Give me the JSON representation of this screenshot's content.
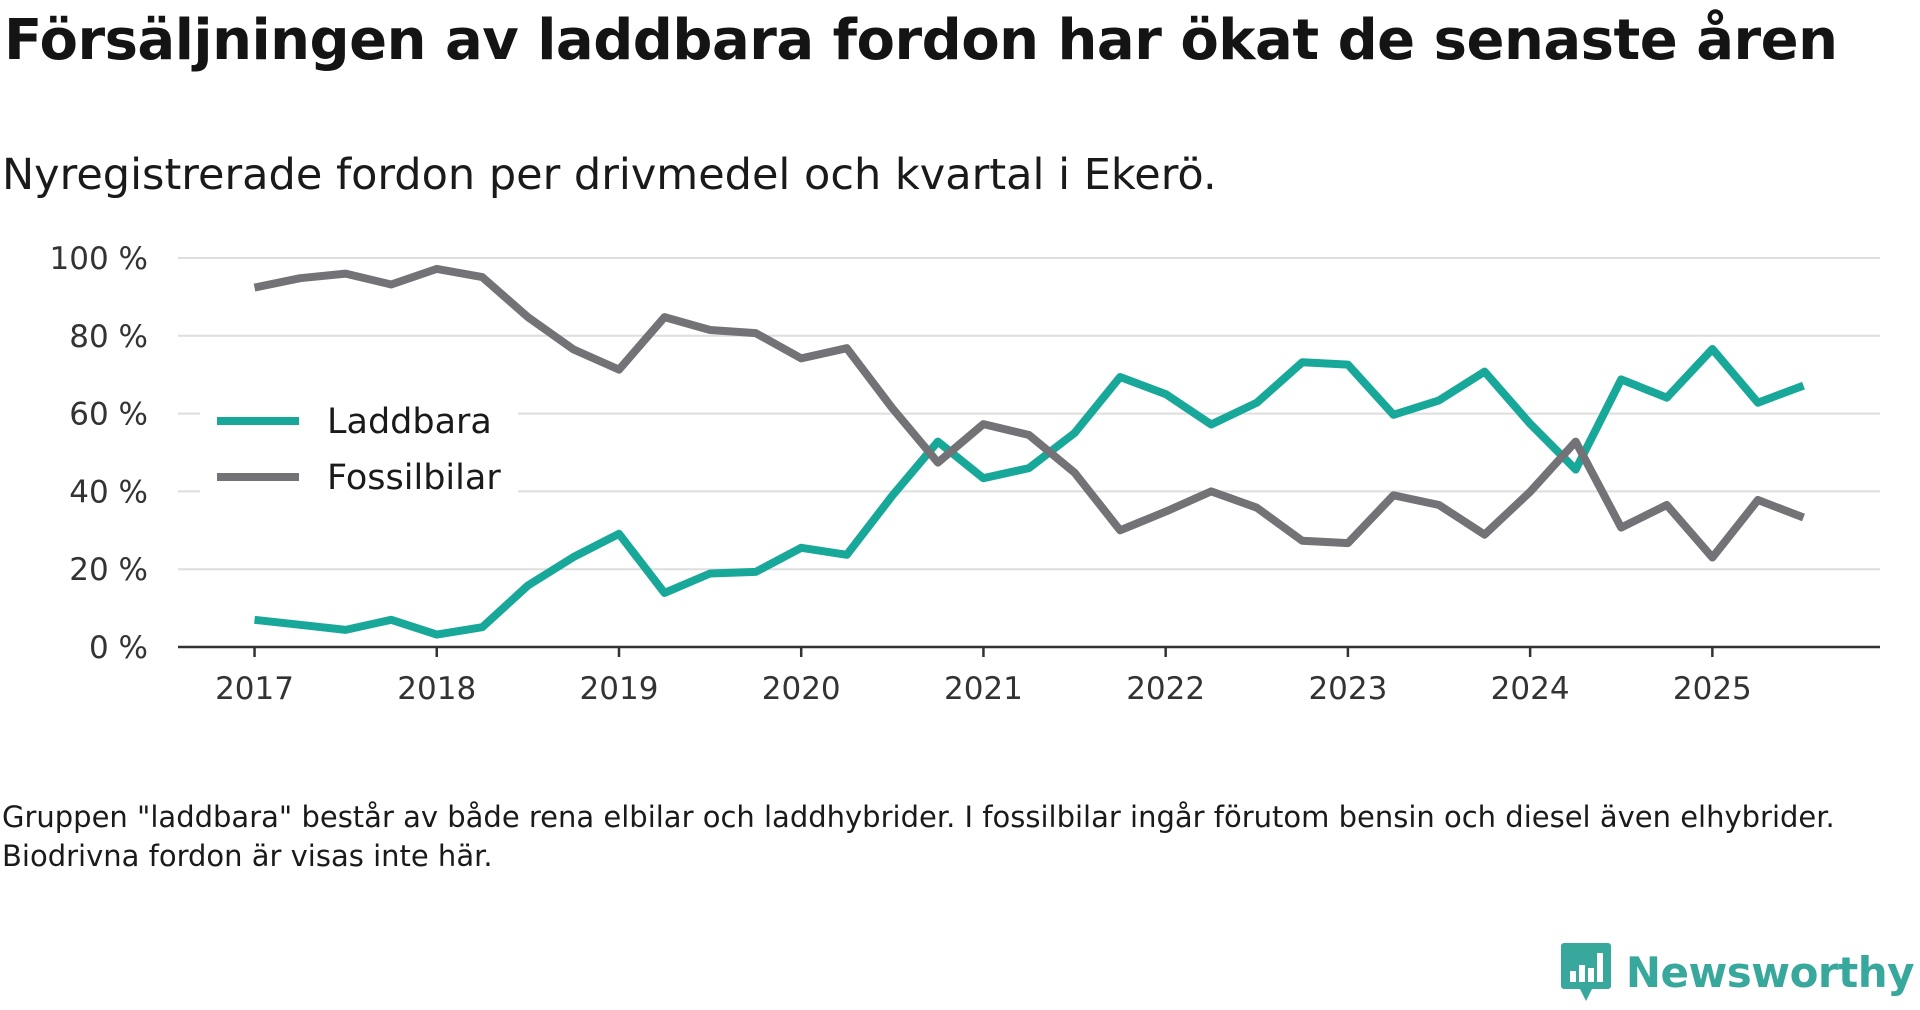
{
  "chart_data": {
    "type": "line",
    "title": "Försäljningen av laddbara fordon har ökat de senaste åren",
    "subtitle": "Nyregistrerade fordon per drivmedel och kvartal i Ekerö.",
    "xlabel": "",
    "ylabel": "",
    "x": [
      2017.0,
      2017.25,
      2017.5,
      2017.75,
      2018.0,
      2018.25,
      2018.5,
      2018.75,
      2019.0,
      2019.25,
      2019.5,
      2019.75,
      2020.0,
      2020.25,
      2020.5,
      2020.75,
      2021.0,
      2021.25,
      2021.5,
      2021.75,
      2022.0,
      2022.25,
      2022.5,
      2022.75,
      2023.0,
      2023.25,
      2023.5,
      2023.75,
      2024.0,
      2024.25,
      2024.5,
      2024.75,
      2025.0,
      2025.25,
      2025.5
    ],
    "xlim": [
      2016.58,
      2025.92
    ],
    "ylim": [
      0,
      100
    ],
    "x_ticks": [
      2017,
      2018,
      2019,
      2020,
      2021,
      2022,
      2023,
      2024,
      2025
    ],
    "x_tick_labels": [
      "2017",
      "2018",
      "2019",
      "2020",
      "2021",
      "2022",
      "2023",
      "2024",
      "2025"
    ],
    "y_ticks": [
      0,
      20,
      40,
      60,
      80,
      100
    ],
    "y_tick_labels": [
      "0 %",
      "20 %",
      "40 %",
      "60 %",
      "80 %",
      "100 %"
    ],
    "grid": true,
    "legend_position": "left",
    "series": [
      {
        "name": "Laddbara",
        "color": "#17a89a",
        "values": [
          7.0,
          5.7,
          4.4,
          7.0,
          3.2,
          5.1,
          15.8,
          23.1,
          29.1,
          13.9,
          18.9,
          19.3,
          25.5,
          23.7,
          38.9,
          52.8,
          43.4,
          46.0,
          55.0,
          69.4,
          65.0,
          57.2,
          62.8,
          73.2,
          72.6,
          59.7,
          63.4,
          70.8,
          57.4,
          45.6,
          68.8,
          64.1,
          76.6,
          62.8,
          67.2
        ]
      },
      {
        "name": "Fossilbilar",
        "color": "#737277",
        "values": [
          92.4,
          94.8,
          96.0,
          93.2,
          97.2,
          95.1,
          84.8,
          76.5,
          71.3,
          84.8,
          81.5,
          80.7,
          74.2,
          76.8,
          61.4,
          47.4,
          57.3,
          54.5,
          44.8,
          30.0,
          34.8,
          40.0,
          35.8,
          27.3,
          26.7,
          39.0,
          36.5,
          28.9,
          39.9,
          52.8,
          30.7,
          36.5,
          23.0,
          37.8,
          33.3
        ]
      }
    ],
    "footnote": "Gruppen \"laddbara\" består av både rena elbilar och laddhybrider. I fossilbilar ingår förutom bensin och diesel även elhybrider. Biodrivna fordon är visas inte här."
  },
  "brand": {
    "name": "Newsworthy",
    "logo_icon": "newsworthy-logo-icon",
    "color": "#38a89d"
  }
}
